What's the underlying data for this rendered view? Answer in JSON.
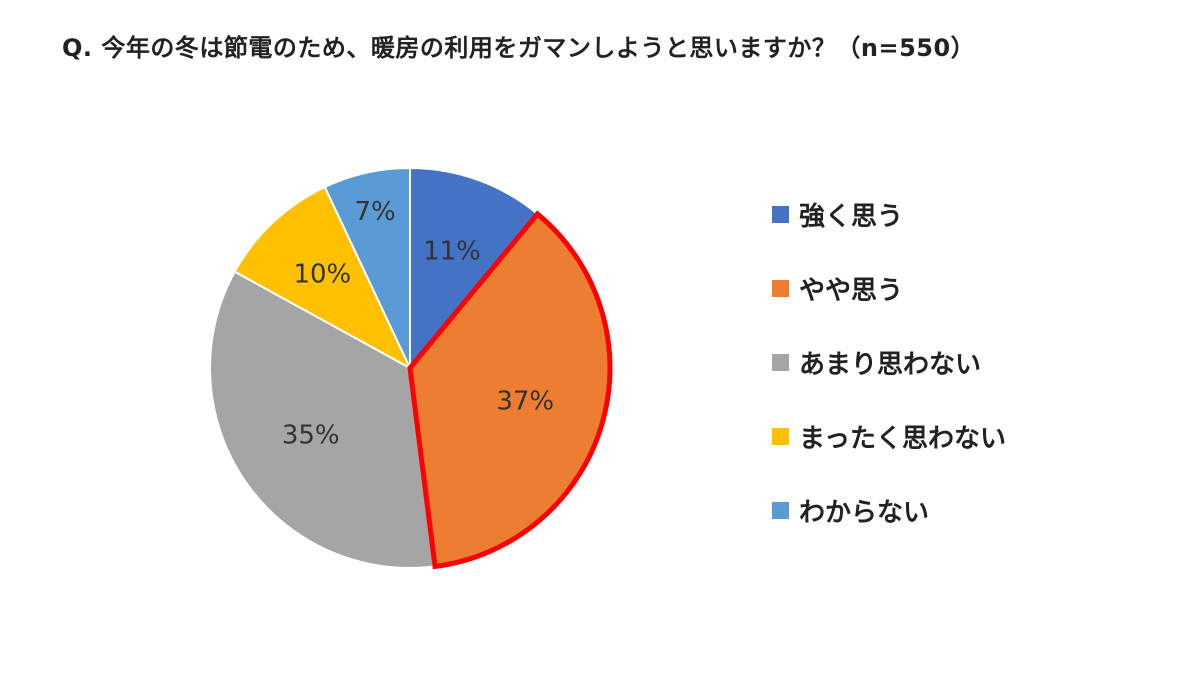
{
  "chart_data": {
    "type": "pie",
    "title": "Q. 今年の冬は節電のため、暖房の利用をガマンしようと思いますか？（n=550）",
    "slices": [
      {
        "label": "強く思う",
        "value": 11,
        "display": "11%",
        "color": "#4472C4",
        "highlighted": false
      },
      {
        "label": "やや思う",
        "value": 37,
        "display": "37%",
        "color": "#ED7D31",
        "highlighted": true
      },
      {
        "label": "あまり思わない",
        "value": 35,
        "display": "35%",
        "color": "#A5A5A5",
        "highlighted": false
      },
      {
        "label": "まったく思わない",
        "value": 10,
        "display": "10%",
        "color": "#FFC000",
        "highlighted": false
      },
      {
        "label": "わからない",
        "value": 7,
        "display": "7%",
        "color": "#5B9BD5",
        "highlighted": false
      }
    ],
    "highlight_color": "#FF0000",
    "legend_position": "right"
  }
}
